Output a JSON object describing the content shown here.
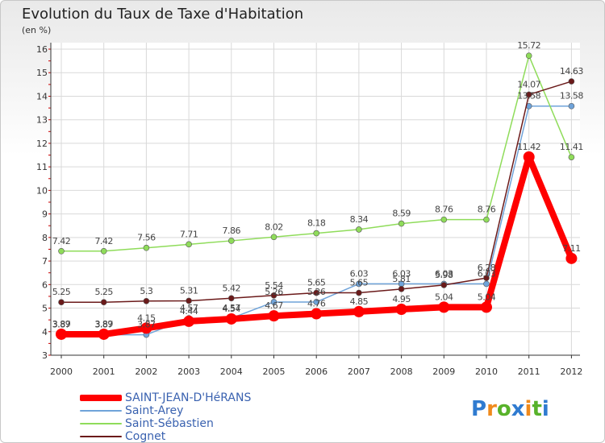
{
  "header": {
    "title": "Evolution du Taux de Taxe d'Habitation",
    "unit": "(en %)"
  },
  "logo": {
    "text": "Proxiti"
  },
  "chart_data": {
    "type": "line",
    "title": "Evolution du Taux de Taxe d'Habitation",
    "ylabel": "(en %)",
    "xlabel": "",
    "categories": [
      "2000",
      "2001",
      "2002",
      "2003",
      "2004",
      "2005",
      "2006",
      "2007",
      "2008",
      "2009",
      "2010",
      "2011",
      "2012"
    ],
    "ylim": [
      3,
      16
    ],
    "yticks": [
      3,
      4,
      5,
      6,
      7,
      8,
      9,
      10,
      11,
      12,
      13,
      14,
      15,
      16
    ],
    "grid": true,
    "legend_position": "bottom-left",
    "series": [
      {
        "name": "SAINT-JEAN-D'HéRANS",
        "color": "#ff0000",
        "width": 8,
        "marker": 7,
        "values": [
          3.89,
          3.89,
          4.15,
          4.44,
          4.54,
          4.67,
          4.76,
          4.85,
          4.95,
          5.04,
          5.04,
          11.42,
          7.11
        ],
        "labels": [
          "3.89",
          "3.89",
          "4.15",
          "4.44",
          "4.54",
          "4.67",
          "4.76",
          "4.85",
          "4.95",
          "5.04",
          "5.04",
          "11.42",
          "7.11"
        ]
      },
      {
        "name": "Saint-Arey",
        "color": "#6fa3d9",
        "width": 1.5,
        "marker": 3.5,
        "values": [
          3.87,
          3.87,
          3.87,
          4.57,
          4.57,
          5.26,
          5.26,
          6.03,
          6.03,
          6.03,
          6.03,
          13.58,
          13.58
        ],
        "labels": [
          "3.87",
          "3.87",
          "3.87",
          "4.57",
          "4.57",
          "5.26",
          "5.26",
          "6.03",
          "6.03",
          "6.03",
          "6.03",
          "13.58",
          "13.58"
        ]
      },
      {
        "name": "Saint-Sébastien",
        "color": "#8fdc5a",
        "width": 1.5,
        "marker": 3.5,
        "values": [
          7.42,
          7.42,
          7.56,
          7.71,
          7.86,
          8.02,
          8.18,
          8.34,
          8.59,
          8.76,
          8.76,
          15.72,
          11.41
        ],
        "labels": [
          "7.42",
          "7.42",
          "7.56",
          "7.71",
          "7.86",
          "8.02",
          "8.18",
          "8.34",
          "8.59",
          "8.76",
          "8.76",
          "15.72",
          "11.41"
        ]
      },
      {
        "name": "Cognet",
        "color": "#6b1a1a",
        "width": 1.5,
        "marker": 3.5,
        "values": [
          5.25,
          5.25,
          5.3,
          5.31,
          5.42,
          5.54,
          5.65,
          5.65,
          5.81,
          5.98,
          6.28,
          14.07,
          14.63
        ],
        "labels": [
          "5.25",
          "5.25",
          "5.3",
          "5.31",
          "5.42",
          "5.54",
          "5.65",
          "5.65",
          "5.81",
          "5.98",
          "6.28",
          "14.07",
          "14.63"
        ]
      }
    ]
  }
}
